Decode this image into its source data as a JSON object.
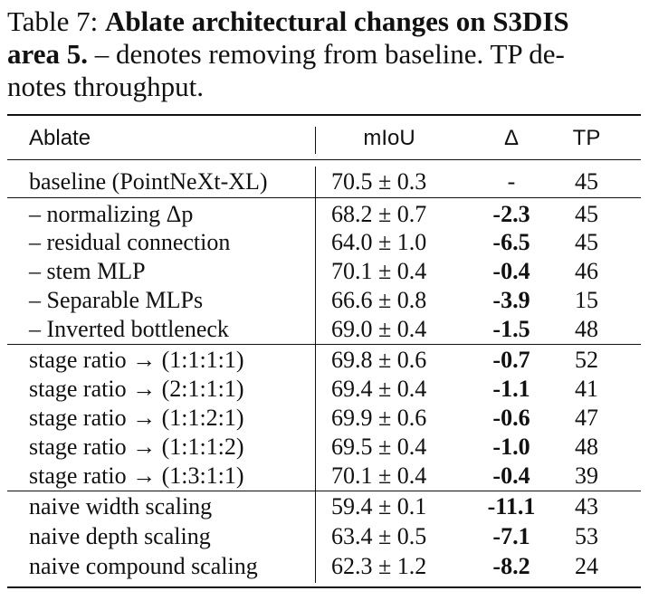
{
  "caption": {
    "label": "Table 7:",
    "title_bold_1": "Ablate architectural changes on S3DIS",
    "title_bold_2": "area 5.",
    "text_line2": "– denotes removing from baseline.  TP de-",
    "text_line3": "notes throughput."
  },
  "table": {
    "headers": {
      "ablate": "Ablate",
      "miou": "mIoU",
      "delta": "Δ",
      "tp": "TP"
    },
    "rows": [
      {
        "ablate": "baseline (PointNeXt-XL)",
        "miou": "70.5 ± 0.3",
        "delta": "-",
        "tp": "45"
      },
      {
        "ablate": "– normalizing Δp",
        "miou": "68.2 ± 0.7",
        "delta": "-2.3",
        "tp": "45"
      },
      {
        "ablate": "– residual connection",
        "miou": "64.0 ± 1.0",
        "delta": "-6.5",
        "tp": "45"
      },
      {
        "ablate": "– stem MLP",
        "miou": "70.1 ± 0.4",
        "delta": "-0.4",
        "tp": "46"
      },
      {
        "ablate": "– Separable MLPs",
        "miou": "66.6 ± 0.8",
        "delta": "-3.9",
        "tp": "15"
      },
      {
        "ablate": "– Inverted bottleneck",
        "miou": "69.0 ± 0.4",
        "delta": "-1.5",
        "tp": "48"
      },
      {
        "ablate": "stage ratio → (1:1:1:1)",
        "miou": "69.8 ± 0.6",
        "delta": "-0.7",
        "tp": "52"
      },
      {
        "ablate": "stage ratio → (2:1:1:1)",
        "miou": "69.4 ± 0.4",
        "delta": "-1.1",
        "tp": "41"
      },
      {
        "ablate": "stage ratio → (1:1:2:1)",
        "miou": "69.9 ± 0.6",
        "delta": "-0.6",
        "tp": "47"
      },
      {
        "ablate": "stage ratio → (1:1:1:2)",
        "miou": "69.5 ± 0.4",
        "delta": "-1.0",
        "tp": "48"
      },
      {
        "ablate": "stage ratio → (1:3:1:1)",
        "miou": "70.1 ± 0.4",
        "delta": "-0.4",
        "tp": "39"
      },
      {
        "ablate": "naive width scaling",
        "miou": "59.4 ± 0.1",
        "delta": "-11.1",
        "tp": "43"
      },
      {
        "ablate": "naive depth scaling",
        "miou": "63.4 ± 0.5",
        "delta": "-7.1",
        "tp": "53"
      },
      {
        "ablate": "naive compound scaling",
        "miou": "62.3 ± 1.2",
        "delta": "-8.2",
        "tp": "24"
      }
    ]
  }
}
